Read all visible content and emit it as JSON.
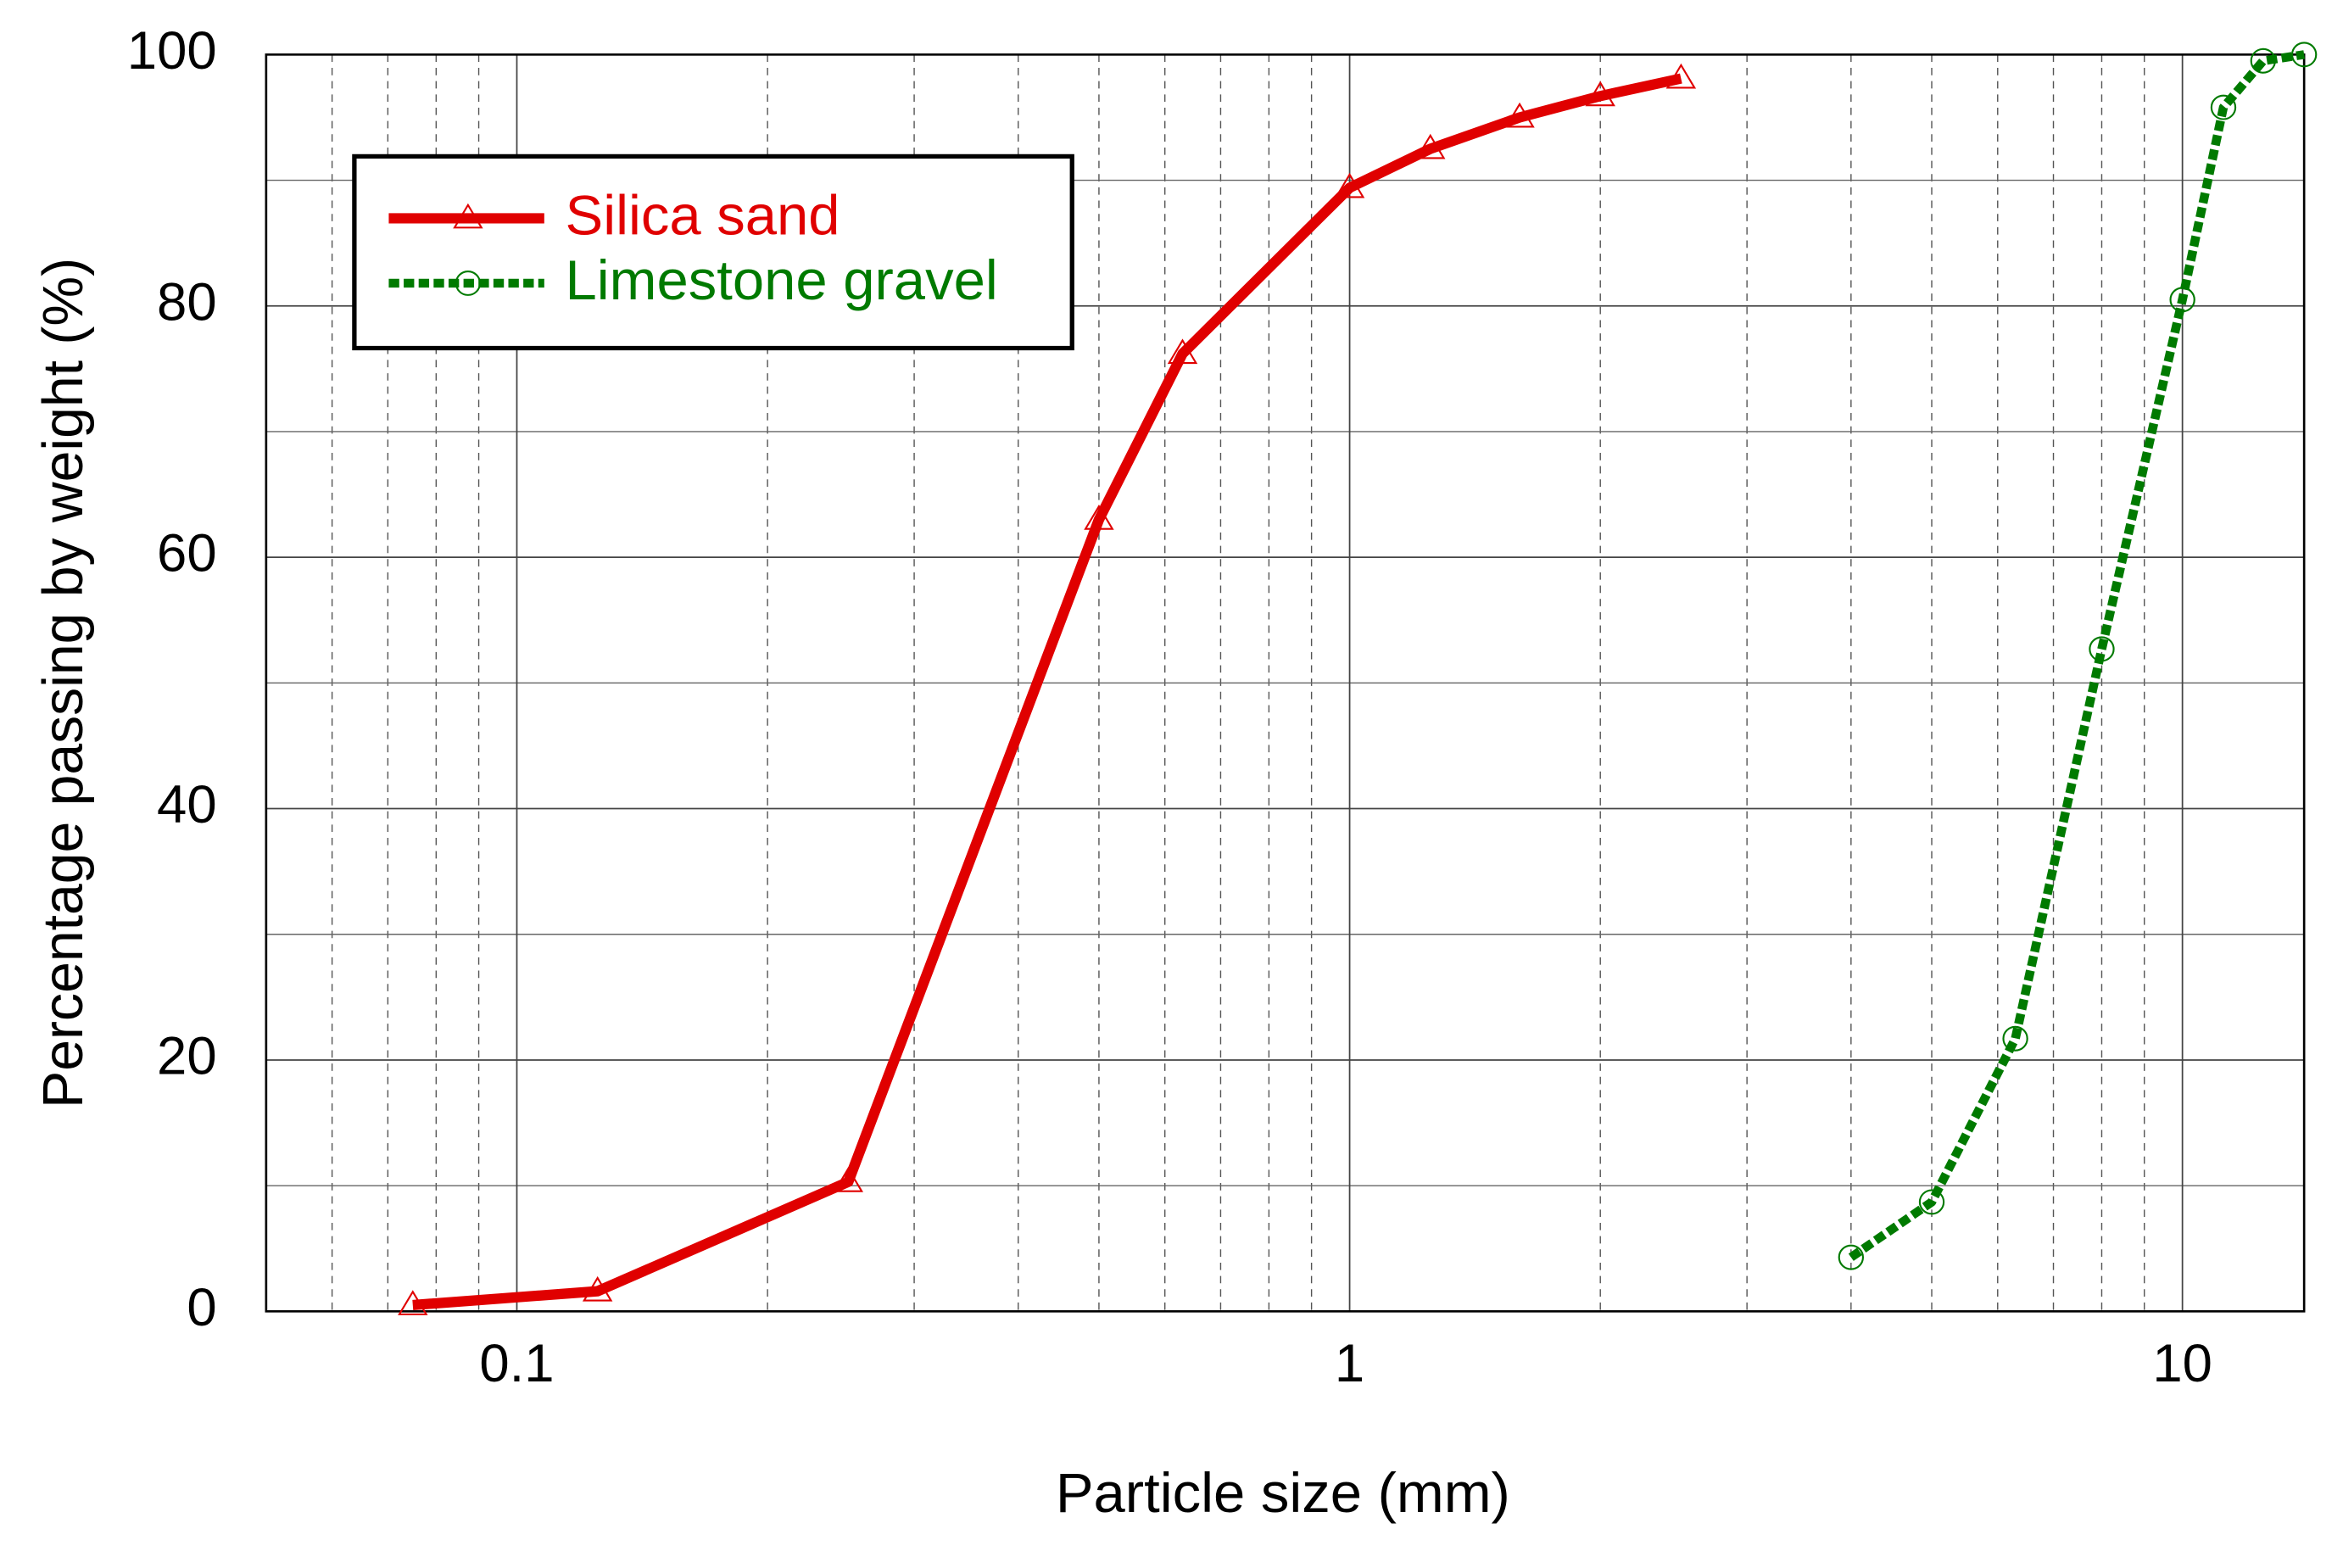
{
  "chart_data": {
    "type": "line",
    "xlabel": "Particle size (mm)",
    "ylabel": "Percentage passing by weight (%)",
    "xscale": "log",
    "xlim": [
      0.05,
      14
    ],
    "xticks": [
      0.1,
      1,
      10
    ],
    "ylim": [
      0,
      100
    ],
    "yticks": [
      0,
      20,
      40,
      60,
      80,
      100
    ],
    "yminor": [
      10,
      30,
      50,
      70,
      90
    ],
    "grid": true,
    "legend": "upper left",
    "series": [
      {
        "name": "Silica sand",
        "color": "#e00000",
        "linestyle": "solid",
        "marker": "triangle",
        "x": [
          0.075,
          0.125,
          0.25,
          0.5,
          0.63,
          1,
          1.25,
          1.6,
          2,
          2.5
        ],
        "values": [
          0.5,
          1.6,
          10.3,
          63,
          76.2,
          89.4,
          92.5,
          95,
          96.7,
          98.1
        ]
      },
      {
        "name": "Limestone gravel",
        "color": "#007a00",
        "linestyle": "dashed",
        "marker": "circle",
        "x": [
          4,
          5,
          6.3,
          8,
          10,
          11.2,
          12.5,
          14
        ],
        "values": [
          4.3,
          8.7,
          21.7,
          52.7,
          80.5,
          95.8,
          99.5,
          100
        ]
      }
    ]
  }
}
